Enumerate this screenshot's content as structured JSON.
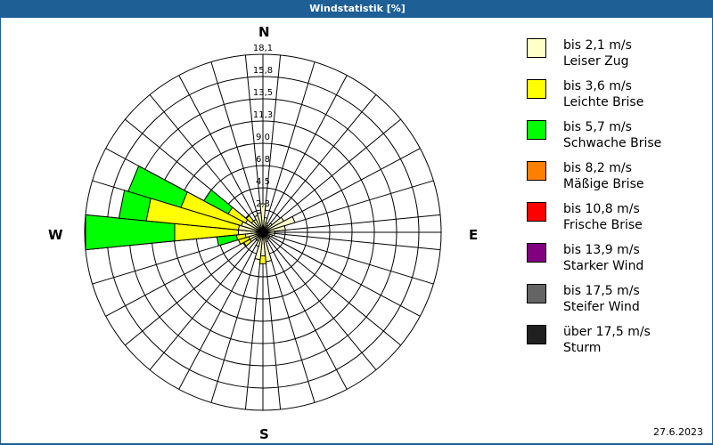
{
  "title": "Windstatistik [%]",
  "compass": {
    "n": "N",
    "e": "E",
    "s": "S",
    "w": "W"
  },
  "date": "27.6.2023",
  "legend": [
    {
      "line1": "bis 2,1 m/s",
      "line2": "Leiser Zug",
      "color": "#ffffc8"
    },
    {
      "line1": "bis 3,6 m/s",
      "line2": "Leichte Brise",
      "color": "#ffff00"
    },
    {
      "line1": "bis 5,7 m/s",
      "line2": "Schwache Brise",
      "color": "#00ff00"
    },
    {
      "line1": "bis 8,2 m/s",
      "line2": "Mäßige Brise",
      "color": "#ff8000"
    },
    {
      "line1": "bis 10,8 m/s",
      "line2": "Frische Brise",
      "color": "#ff0000"
    },
    {
      "line1": "bis 13,9 m/s",
      "line2": "Starker Wind",
      "color": "#800080"
    },
    {
      "line1": "bis 17,5 m/s",
      "line2": "Steifer Wind",
      "color": "#646464"
    },
    {
      "line1": "über 17,5 m/s",
      "line2": "Sturm",
      "color": "#202020"
    }
  ],
  "chart_data": {
    "type": "wind-rose",
    "title": "Windstatistik [%]",
    "unit": "%",
    "rings": [
      "2,3",
      "4,5",
      "6,8",
      "9,0",
      "11,3",
      "13,5",
      "15,8",
      "18,1"
    ],
    "ring_values": [
      2.3,
      4.5,
      6.8,
      9.0,
      11.3,
      13.5,
      15.8,
      18.1
    ],
    "rmax": 18.1,
    "sector_count": 32,
    "series_names": [
      "bis 2,1 m/s",
      "bis 3,6 m/s",
      "bis 5,7 m/s"
    ],
    "series_colors": [
      "#ffffc8",
      "#ffff00",
      "#00ff00"
    ],
    "directions": [
      {
        "deg": 0,
        "cum": [
          2.9
        ]
      },
      {
        "deg": 11.25,
        "cum": [
          1.5
        ]
      },
      {
        "deg": 22.5,
        "cum": [
          1.0
        ]
      },
      {
        "deg": 33.75,
        "cum": [
          0.8
        ]
      },
      {
        "deg": 45,
        "cum": [
          1.2
        ]
      },
      {
        "deg": 56.25,
        "cum": [
          2.4
        ]
      },
      {
        "deg": 67.5,
        "cum": [
          3.4
        ]
      },
      {
        "deg": 78.75,
        "cum": [
          2.3
        ]
      },
      {
        "deg": 90,
        "cum": [
          1.2
        ]
      },
      {
        "deg": 101.25,
        "cum": [
          1.2
        ]
      },
      {
        "deg": 112.5,
        "cum": [
          1.0
        ]
      },
      {
        "deg": 123.75,
        "cum": [
          0.8
        ]
      },
      {
        "deg": 135,
        "cum": [
          0.8
        ]
      },
      {
        "deg": 146.25,
        "cum": [
          0.8
        ]
      },
      {
        "deg": 157.5,
        "cum": [
          1.0
        ]
      },
      {
        "deg": 168.75,
        "cum": [
          3.0
        ]
      },
      {
        "deg": 180,
        "cum": [
          2.4,
          3.2
        ]
      },
      {
        "deg": 191.25,
        "cum": [
          2.8
        ]
      },
      {
        "deg": 202.5,
        "cum": [
          1.5
        ]
      },
      {
        "deg": 213.75,
        "cum": [
          1.0
        ]
      },
      {
        "deg": 225,
        "cum": [
          1.0
        ]
      },
      {
        "deg": 236.25,
        "cum": [
          1.5,
          2.2
        ]
      },
      {
        "deg": 247.5,
        "cum": [
          1.5,
          2.6
        ]
      },
      {
        "deg": 258.75,
        "cum": [
          1.8,
          2.7,
          4.7
        ]
      },
      {
        "deg": 270,
        "cum": [
          2.5,
          9.0,
          18.1
        ]
      },
      {
        "deg": 281.25,
        "cum": [
          2.5,
          11.9,
          14.7
        ]
      },
      {
        "deg": 292.5,
        "cum": [
          2.3,
          8.7,
          14.3
        ]
      },
      {
        "deg": 303.75,
        "cum": [
          2.0,
          4.0,
          6.8
        ]
      },
      {
        "deg": 315,
        "cum": [
          1.5,
          2.2
        ]
      },
      {
        "deg": 326.25,
        "cum": [
          1.5
        ]
      },
      {
        "deg": 337.5,
        "cum": [
          1.8
        ]
      },
      {
        "deg": 348.75,
        "cum": [
          2.0
        ]
      }
    ]
  }
}
